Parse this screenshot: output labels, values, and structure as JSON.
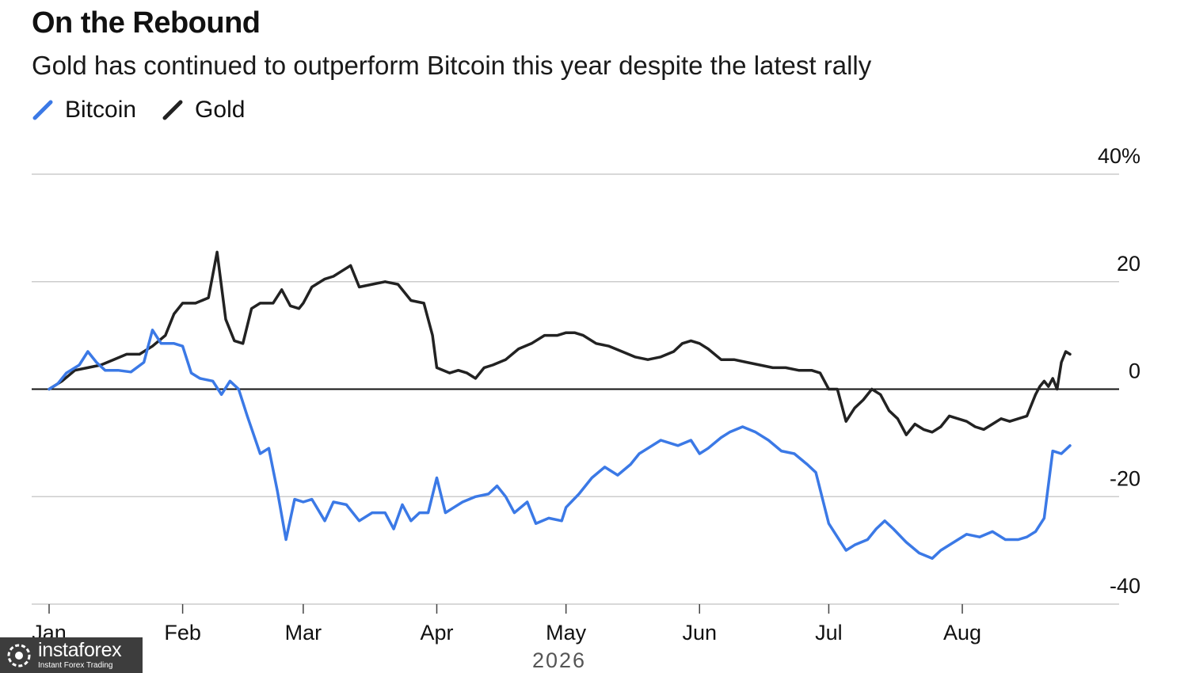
{
  "title": "On the Rebound",
  "subtitle": "Gold has continued to outperform Bitcoin this year despite the latest rally",
  "legend": [
    {
      "label": "Bitcoin",
      "color": "#3b79e6"
    },
    {
      "label": "Gold",
      "color": "#222222"
    }
  ],
  "watermark": {
    "name": "instaforex",
    "tagline": "Instant Forex Trading"
  },
  "chart_data": {
    "type": "line",
    "year_label": "2026",
    "y_ticks": [
      "40%",
      "20",
      "0",
      "-20",
      "-40"
    ],
    "y_tick_values": [
      40,
      20,
      0,
      -20,
      -40
    ],
    "ylim": [
      -40,
      40
    ],
    "x_tick_labels": [
      "Jan",
      "Feb",
      "Mar",
      "Apr",
      "May",
      "Jun",
      "Jul",
      "Aug"
    ],
    "x_tick_dates": [
      "2026-01-01",
      "2026-02-01",
      "2026-03-01",
      "2026-04-01",
      "2026-05-01",
      "2026-06-01",
      "2026-07-01",
      "2026-08-01"
    ],
    "x_range": [
      "2026-01-01",
      "2026-08-26"
    ],
    "grid": true,
    "legend_position": "top-left",
    "series": [
      {
        "name": "Bitcoin",
        "color": "#3b79e6",
        "points": [
          [
            "2026-01-01",
            0
          ],
          [
            "2026-01-03",
            1
          ],
          [
            "2026-01-05",
            3
          ],
          [
            "2026-01-08",
            4.5
          ],
          [
            "2026-01-10",
            7
          ],
          [
            "2026-01-12",
            5
          ],
          [
            "2026-01-14",
            3.5
          ],
          [
            "2026-01-17",
            3.5
          ],
          [
            "2026-01-20",
            3.2
          ],
          [
            "2026-01-23",
            5
          ],
          [
            "2026-01-25",
            11
          ],
          [
            "2026-01-27",
            8.5
          ],
          [
            "2026-01-30",
            8.5
          ],
          [
            "2026-02-01",
            8
          ],
          [
            "2026-02-03",
            3
          ],
          [
            "2026-02-05",
            2
          ],
          [
            "2026-02-08",
            1.5
          ],
          [
            "2026-02-10",
            -1
          ],
          [
            "2026-02-12",
            1.5
          ],
          [
            "2026-02-14",
            0
          ],
          [
            "2026-02-16",
            -5
          ],
          [
            "2026-02-19",
            -12
          ],
          [
            "2026-02-21",
            -11
          ],
          [
            "2026-02-23",
            -19
          ],
          [
            "2026-02-25",
            -28
          ],
          [
            "2026-02-27",
            -20.5
          ],
          [
            "2026-03-01",
            -21
          ],
          [
            "2026-03-03",
            -20.5
          ],
          [
            "2026-03-06",
            -24.5
          ],
          [
            "2026-03-08",
            -21
          ],
          [
            "2026-03-11",
            -21.5
          ],
          [
            "2026-03-14",
            -24.5
          ],
          [
            "2026-03-17",
            -23
          ],
          [
            "2026-03-20",
            -23
          ],
          [
            "2026-03-22",
            -26
          ],
          [
            "2026-03-24",
            -21.5
          ],
          [
            "2026-03-26",
            -24.5
          ],
          [
            "2026-03-28",
            -23
          ],
          [
            "2026-03-30",
            -23
          ],
          [
            "2026-04-01",
            -16.5
          ],
          [
            "2026-04-03",
            -23
          ],
          [
            "2026-04-05",
            -22
          ],
          [
            "2026-04-07",
            -21
          ],
          [
            "2026-04-10",
            -20
          ],
          [
            "2026-04-13",
            -19.5
          ],
          [
            "2026-04-15",
            -18
          ],
          [
            "2026-04-17",
            -20
          ],
          [
            "2026-04-19",
            -23
          ],
          [
            "2026-04-22",
            -21
          ],
          [
            "2026-04-24",
            -25
          ],
          [
            "2026-04-27",
            -24
          ],
          [
            "2026-04-30",
            -24.5
          ],
          [
            "2026-05-01",
            -22
          ],
          [
            "2026-05-04",
            -19.5
          ],
          [
            "2026-05-07",
            -16.5
          ],
          [
            "2026-05-10",
            -14.5
          ],
          [
            "2026-05-13",
            -16
          ],
          [
            "2026-05-16",
            -14
          ],
          [
            "2026-05-18",
            -12
          ],
          [
            "2026-05-20",
            -11
          ],
          [
            "2026-05-23",
            -9.5
          ],
          [
            "2026-05-27",
            -10.5
          ],
          [
            "2026-05-30",
            -9.5
          ],
          [
            "2026-06-01",
            -12
          ],
          [
            "2026-06-03",
            -11
          ],
          [
            "2026-06-06",
            -9
          ],
          [
            "2026-06-08",
            -8
          ],
          [
            "2026-06-11",
            -7
          ],
          [
            "2026-06-14",
            -8
          ],
          [
            "2026-06-17",
            -9.5
          ],
          [
            "2026-06-20",
            -11.5
          ],
          [
            "2026-06-23",
            -12
          ],
          [
            "2026-06-26",
            -14
          ],
          [
            "2026-06-28",
            -15.5
          ],
          [
            "2026-07-01",
            -25
          ],
          [
            "2026-07-03",
            -27.5
          ],
          [
            "2026-07-05",
            -30
          ],
          [
            "2026-07-07",
            -29
          ],
          [
            "2026-07-10",
            -28
          ],
          [
            "2026-07-12",
            -26
          ],
          [
            "2026-07-14",
            -24.5
          ],
          [
            "2026-07-16",
            -26
          ],
          [
            "2026-07-19",
            -28.5
          ],
          [
            "2026-07-22",
            -30.5
          ],
          [
            "2026-07-25",
            -31.5
          ],
          [
            "2026-07-27",
            -30
          ],
          [
            "2026-07-30",
            -28.5
          ],
          [
            "2026-08-02",
            -27
          ],
          [
            "2026-08-05",
            -27.5
          ],
          [
            "2026-08-08",
            -26.5
          ],
          [
            "2026-08-11",
            -28
          ],
          [
            "2026-08-14",
            -28
          ],
          [
            "2026-08-16",
            -27.5
          ],
          [
            "2026-08-18",
            -26.5
          ],
          [
            "2026-08-20",
            -24
          ],
          [
            "2026-08-22",
            -11.5
          ],
          [
            "2026-08-24",
            -12
          ],
          [
            "2026-08-26",
            -10.5
          ]
        ]
      },
      {
        "name": "Gold",
        "color": "#222222",
        "points": [
          [
            "2026-01-01",
            0
          ],
          [
            "2026-01-04",
            1.5
          ],
          [
            "2026-01-07",
            3.5
          ],
          [
            "2026-01-10",
            4
          ],
          [
            "2026-01-13",
            4.5
          ],
          [
            "2026-01-16",
            5.5
          ],
          [
            "2026-01-19",
            6.5
          ],
          [
            "2026-01-22",
            6.5
          ],
          [
            "2026-01-25",
            8
          ],
          [
            "2026-01-28",
            10
          ],
          [
            "2026-01-30",
            14
          ],
          [
            "2026-02-01",
            16
          ],
          [
            "2026-02-04",
            16
          ],
          [
            "2026-02-07",
            17
          ],
          [
            "2026-02-09",
            25.5
          ],
          [
            "2026-02-11",
            13
          ],
          [
            "2026-02-13",
            9
          ],
          [
            "2026-02-15",
            8.5
          ],
          [
            "2026-02-17",
            15
          ],
          [
            "2026-02-19",
            16
          ],
          [
            "2026-02-22",
            16
          ],
          [
            "2026-02-24",
            18.5
          ],
          [
            "2026-02-26",
            15.5
          ],
          [
            "2026-02-28",
            15
          ],
          [
            "2026-03-01",
            16
          ],
          [
            "2026-03-03",
            19
          ],
          [
            "2026-03-06",
            20.5
          ],
          [
            "2026-03-08",
            21
          ],
          [
            "2026-03-10",
            22
          ],
          [
            "2026-03-12",
            23
          ],
          [
            "2026-03-14",
            19
          ],
          [
            "2026-03-17",
            19.5
          ],
          [
            "2026-03-20",
            20
          ],
          [
            "2026-03-23",
            19.5
          ],
          [
            "2026-03-26",
            16.5
          ],
          [
            "2026-03-29",
            16
          ],
          [
            "2026-03-31",
            10
          ],
          [
            "2026-04-01",
            4
          ],
          [
            "2026-04-04",
            3
          ],
          [
            "2026-04-06",
            3.5
          ],
          [
            "2026-04-08",
            3
          ],
          [
            "2026-04-10",
            2
          ],
          [
            "2026-04-12",
            4
          ],
          [
            "2026-04-14",
            4.5
          ],
          [
            "2026-04-17",
            5.5
          ],
          [
            "2026-04-20",
            7.5
          ],
          [
            "2026-04-23",
            8.5
          ],
          [
            "2026-04-26",
            10
          ],
          [
            "2026-04-29",
            10
          ],
          [
            "2026-05-01",
            10.5
          ],
          [
            "2026-05-03",
            10.5
          ],
          [
            "2026-05-05",
            10
          ],
          [
            "2026-05-08",
            8.5
          ],
          [
            "2026-05-11",
            8
          ],
          [
            "2026-05-14",
            7
          ],
          [
            "2026-05-17",
            6
          ],
          [
            "2026-05-20",
            5.5
          ],
          [
            "2026-05-23",
            6
          ],
          [
            "2026-05-26",
            7
          ],
          [
            "2026-05-28",
            8.5
          ],
          [
            "2026-05-30",
            9
          ],
          [
            "2026-06-01",
            8.5
          ],
          [
            "2026-06-03",
            7.5
          ],
          [
            "2026-06-06",
            5.5
          ],
          [
            "2026-06-09",
            5.5
          ],
          [
            "2026-06-12",
            5
          ],
          [
            "2026-06-15",
            4.5
          ],
          [
            "2026-06-18",
            4
          ],
          [
            "2026-06-21",
            4
          ],
          [
            "2026-06-24",
            3.5
          ],
          [
            "2026-06-27",
            3.5
          ],
          [
            "2026-06-29",
            3
          ],
          [
            "2026-07-01",
            0
          ],
          [
            "2026-07-03",
            0
          ],
          [
            "2026-07-05",
            -6
          ],
          [
            "2026-07-07",
            -3.5
          ],
          [
            "2026-07-09",
            -2
          ],
          [
            "2026-07-11",
            0
          ],
          [
            "2026-07-13",
            -1
          ],
          [
            "2026-07-15",
            -4
          ],
          [
            "2026-07-17",
            -5.5
          ],
          [
            "2026-07-19",
            -8.5
          ],
          [
            "2026-07-21",
            -6.5
          ],
          [
            "2026-07-23",
            -7.5
          ],
          [
            "2026-07-25",
            -8
          ],
          [
            "2026-07-27",
            -7
          ],
          [
            "2026-07-29",
            -5
          ],
          [
            "2026-07-31",
            -5.5
          ],
          [
            "2026-08-02",
            -6
          ],
          [
            "2026-08-04",
            -7
          ],
          [
            "2026-08-06",
            -7.5
          ],
          [
            "2026-08-08",
            -6.5
          ],
          [
            "2026-08-10",
            -5.5
          ],
          [
            "2026-08-12",
            -6
          ],
          [
            "2026-08-14",
            -5.5
          ],
          [
            "2026-08-16",
            -5
          ],
          [
            "2026-08-18",
            -1
          ],
          [
            "2026-08-19",
            0.5
          ],
          [
            "2026-08-20",
            1.5
          ],
          [
            "2026-08-21",
            0.5
          ],
          [
            "2026-08-22",
            2
          ],
          [
            "2026-08-23",
            0
          ],
          [
            "2026-08-24",
            5
          ],
          [
            "2026-08-25",
            7
          ],
          [
            "2026-08-26",
            6.5
          ]
        ]
      }
    ]
  }
}
